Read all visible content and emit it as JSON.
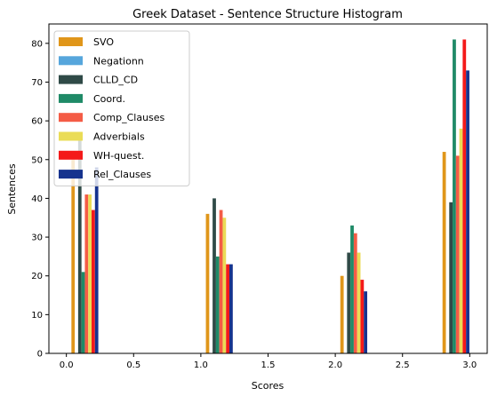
{
  "chart_data": {
    "type": "bar",
    "title": "Greek Dataset - Sentence Structure Histogram",
    "xlabel": "Scores",
    "ylabel": "Sentences",
    "xlim": [
      -0.13,
      3.13
    ],
    "ylim": [
      0,
      85
    ],
    "xticks": [
      0.0,
      0.5,
      1.0,
      1.5,
      2.0,
      2.5,
      3.0
    ],
    "xtick_labels": [
      "0.0",
      "0.5",
      "1.0",
      "1.5",
      "2.0",
      "2.5",
      "3.0"
    ],
    "yticks": [
      0,
      10,
      20,
      30,
      40,
      50,
      60,
      70,
      80
    ],
    "ytick_labels": [
      "0",
      "10",
      "20",
      "30",
      "40",
      "50",
      "60",
      "70",
      "80"
    ],
    "grid": false,
    "legend_position": "top-left",
    "bar_width": 0.025,
    "series": [
      {
        "name": "SVO",
        "color": "#e0961a",
        "points": [
          {
            "x": 0.05,
            "y": 50
          },
          {
            "x": 1.05,
            "y": 36
          },
          {
            "x": 2.05,
            "y": 20
          },
          {
            "x": 2.81,
            "y": 52
          }
        ]
      },
      {
        "name": "Negationn",
        "color": "#56a6dc",
        "points": [
          {
            "x": 0.075,
            "y": 0
          },
          {
            "x": 1.075,
            "y": 0
          },
          {
            "x": 2.075,
            "y": 0
          },
          {
            "x": 2.835,
            "y": 0
          }
        ]
      },
      {
        "name": "CLLD_CD",
        "color": "#2f4a47",
        "points": [
          {
            "x": 0.1,
            "y": 55
          },
          {
            "x": 1.1,
            "y": 40
          },
          {
            "x": 2.1,
            "y": 26
          },
          {
            "x": 2.86,
            "y": 39
          }
        ]
      },
      {
        "name": "Coord.",
        "color": "#1f8a67",
        "points": [
          {
            "x": 0.125,
            "y": 21
          },
          {
            "x": 1.125,
            "y": 25
          },
          {
            "x": 2.125,
            "y": 33
          },
          {
            "x": 2.885,
            "y": 81
          }
        ]
      },
      {
        "name": "Comp_Clauses",
        "color": "#f45c46",
        "points": [
          {
            "x": 0.15,
            "y": 41
          },
          {
            "x": 1.15,
            "y": 37
          },
          {
            "x": 2.15,
            "y": 31
          },
          {
            "x": 2.91,
            "y": 51
          }
        ]
      },
      {
        "name": "Adverbials",
        "color": "#eadc56",
        "points": [
          {
            "x": 0.175,
            "y": 41
          },
          {
            "x": 1.175,
            "y": 35
          },
          {
            "x": 2.175,
            "y": 26
          },
          {
            "x": 2.935,
            "y": 58
          }
        ]
      },
      {
        "name": "WH-quest.",
        "color": "#f41a1a",
        "points": [
          {
            "x": 0.2,
            "y": 37
          },
          {
            "x": 1.2,
            "y": 23
          },
          {
            "x": 2.2,
            "y": 19
          },
          {
            "x": 2.96,
            "y": 81
          }
        ]
      },
      {
        "name": "Rel_Clauses",
        "color": "#16338e",
        "points": [
          {
            "x": 0.225,
            "y": 48
          },
          {
            "x": 1.225,
            "y": 23
          },
          {
            "x": 2.225,
            "y": 16
          },
          {
            "x": 2.985,
            "y": 73
          }
        ]
      }
    ]
  }
}
